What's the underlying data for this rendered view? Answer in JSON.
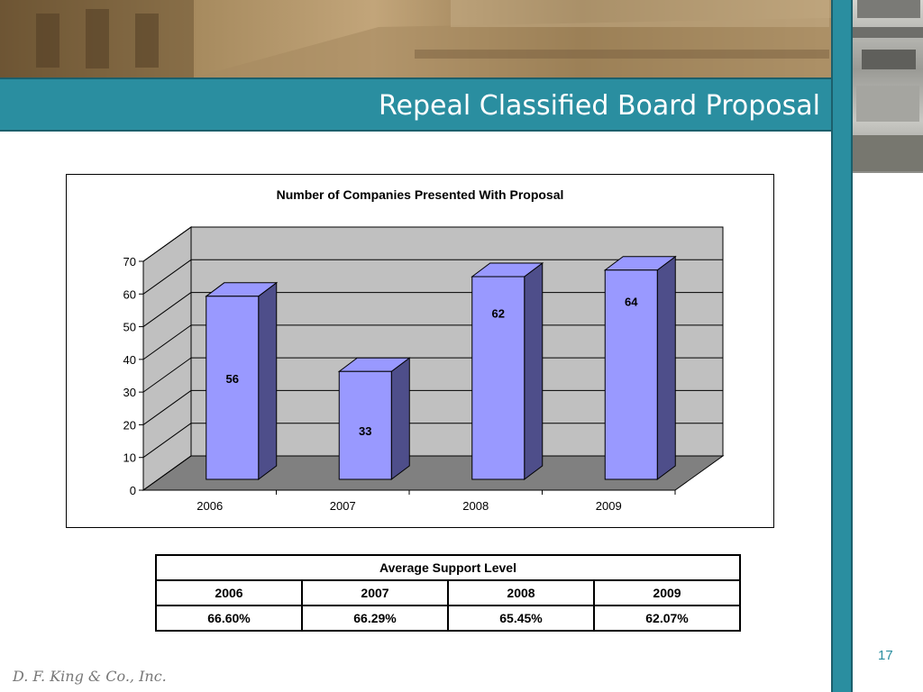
{
  "slide": {
    "title": "Repeal Classified Board Proposal",
    "page_number": "17",
    "footer_logo_text": "D. F. King & Co., Inc."
  },
  "colors": {
    "teal": "#2a8ea0",
    "bar_front": "#9999ff",
    "bar_side": "#4e4e8a",
    "back_wall": "#c0c0c0",
    "floor": "#808080"
  },
  "chart_data": {
    "type": "bar",
    "title": "Number of Companies Presented With Proposal",
    "categories": [
      "2006",
      "2007",
      "2008",
      "2009"
    ],
    "values": [
      56,
      33,
      62,
      64
    ],
    "ylim": [
      0,
      70
    ],
    "yticks": [
      0,
      10,
      20,
      30,
      40,
      50,
      60,
      70
    ],
    "grid": true,
    "legend": "none",
    "style": "3d-column"
  },
  "support_table": {
    "title": "Average Support Level",
    "years": [
      "2006",
      "2007",
      "2008",
      "2009"
    ],
    "levels": [
      "66.60%",
      "66.29%",
      "65.45%",
      "62.07%"
    ]
  }
}
